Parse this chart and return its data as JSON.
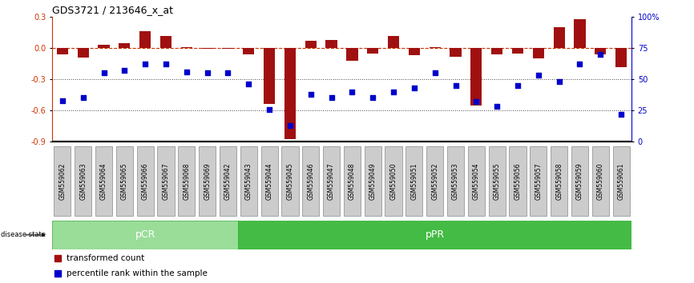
{
  "title": "GDS3721 / 213646_x_at",
  "samples": [
    "GSM559062",
    "GSM559063",
    "GSM559064",
    "GSM559065",
    "GSM559066",
    "GSM559067",
    "GSM559068",
    "GSM559069",
    "GSM559042",
    "GSM559043",
    "GSM559044",
    "GSM559045",
    "GSM559046",
    "GSM559047",
    "GSM559048",
    "GSM559049",
    "GSM559050",
    "GSM559051",
    "GSM559052",
    "GSM559053",
    "GSM559054",
    "GSM559055",
    "GSM559056",
    "GSM559057",
    "GSM559058",
    "GSM559059",
    "GSM559060",
    "GSM559061"
  ],
  "bar_values": [
    -0.06,
    -0.09,
    0.03,
    0.05,
    0.16,
    0.12,
    0.01,
    -0.01,
    -0.01,
    -0.06,
    -0.54,
    -0.88,
    0.07,
    0.08,
    -0.12,
    -0.05,
    0.12,
    -0.07,
    0.01,
    -0.08,
    -0.55,
    -0.06,
    -0.05,
    -0.1,
    0.2,
    0.28,
    -0.06,
    -0.18
  ],
  "percentile_values": [
    33,
    35,
    55,
    57,
    62,
    62,
    56,
    55,
    55,
    46,
    26,
    13,
    38,
    35,
    40,
    35,
    40,
    43,
    55,
    45,
    32,
    28,
    45,
    53,
    48,
    62,
    70,
    22
  ],
  "pCR_indices": [
    0,
    9
  ],
  "pPR_indices": [
    9,
    28
  ],
  "ylim": [
    -0.9,
    0.3
  ],
  "yticks_left": [
    -0.9,
    -0.6,
    -0.3,
    0.0,
    0.3
  ],
  "yticks_right": [
    0,
    25,
    50,
    75,
    100
  ],
  "bar_color": "#A01010",
  "blue_color": "#0000CC",
  "dashed_color": "#CC3300",
  "dotted_color": "#444444",
  "pCR_color": "#99DD99",
  "pPR_color": "#44BB44",
  "tick_box_color": "#CCCCCC",
  "tick_box_edge": "#888888",
  "background_color": "#FFFFFF",
  "legend_transformed": "transformed count",
  "legend_percentile": "percentile rank within the sample"
}
